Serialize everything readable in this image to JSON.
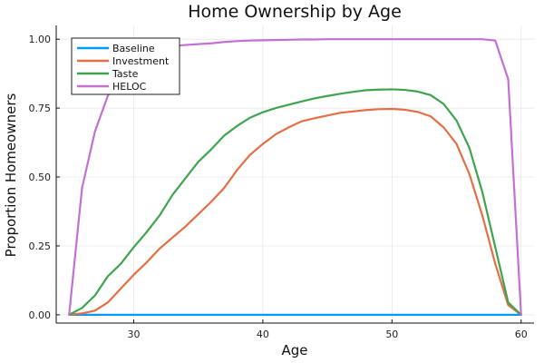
{
  "chart_data": {
    "type": "line",
    "title": "Home Ownership by Age",
    "xlabel": "Age",
    "ylabel": "Proportion Homeowners",
    "xlim": [
      24,
      61
    ],
    "ylim": [
      -0.03,
      1.05
    ],
    "x_ticks": [
      30,
      40,
      50,
      60
    ],
    "y_ticks": [
      0,
      0.25,
      0.5,
      0.75,
      1.0
    ],
    "x_tick_labels": [
      "30",
      "40",
      "50",
      "60"
    ],
    "y_tick_labels": [
      "0.00",
      "0.25",
      "0.50",
      "0.75",
      "1.00"
    ],
    "grid": true,
    "legend_position": "top-left",
    "x": [
      25,
      26,
      27,
      28,
      29,
      30,
      31,
      32,
      33,
      34,
      35,
      36,
      37,
      38,
      39,
      40,
      41,
      42,
      43,
      44,
      45,
      46,
      47,
      48,
      49,
      50,
      51,
      52,
      53,
      54,
      55,
      56,
      57,
      58,
      59,
      60
    ],
    "series": [
      {
        "name": "Baseline",
        "color": "#009AFA",
        "values": [
          0,
          0,
          0,
          0,
          0,
          0,
          0,
          0,
          0,
          0,
          0,
          0,
          0,
          0,
          0,
          0,
          0,
          0,
          0,
          0,
          0,
          0,
          0,
          0,
          0,
          0,
          0,
          0,
          0,
          0,
          0,
          0,
          0,
          0,
          0,
          0
        ]
      },
      {
        "name": "Investment",
        "color": "#E36F47",
        "values": [
          0.0,
          0.005,
          0.015,
          0.045,
          0.095,
          0.145,
          0.19,
          0.24,
          0.28,
          0.32,
          0.365,
          0.41,
          0.46,
          0.525,
          0.58,
          0.62,
          0.655,
          0.68,
          0.702,
          0.713,
          0.723,
          0.733,
          0.738,
          0.743,
          0.746,
          0.747,
          0.744,
          0.736,
          0.72,
          0.68,
          0.62,
          0.51,
          0.36,
          0.185,
          0.035,
          0.0
        ]
      },
      {
        "name": "Taste",
        "color": "#3EA44E",
        "values": [
          0.0,
          0.025,
          0.07,
          0.14,
          0.185,
          0.245,
          0.3,
          0.36,
          0.435,
          0.495,
          0.555,
          0.6,
          0.65,
          0.685,
          0.715,
          0.735,
          0.75,
          0.762,
          0.774,
          0.785,
          0.794,
          0.802,
          0.809,
          0.815,
          0.817,
          0.818,
          0.816,
          0.81,
          0.797,
          0.765,
          0.705,
          0.605,
          0.445,
          0.245,
          0.045,
          0.0
        ]
      },
      {
        "name": "HELOC",
        "color": "#C271D2",
        "values": [
          0.0,
          0.46,
          0.665,
          0.795,
          0.875,
          0.925,
          0.95,
          0.965,
          0.974,
          0.979,
          0.982,
          0.985,
          0.99,
          0.993,
          0.995,
          0.996,
          0.997,
          0.998,
          0.999,
          0.999,
          1.0,
          1.0,
          1.0,
          1.0,
          1.0,
          1.0,
          1.0,
          1.0,
          1.0,
          1.0,
          1.0,
          1.0,
          1.0,
          0.995,
          0.855,
          0.0
        ]
      }
    ]
  }
}
